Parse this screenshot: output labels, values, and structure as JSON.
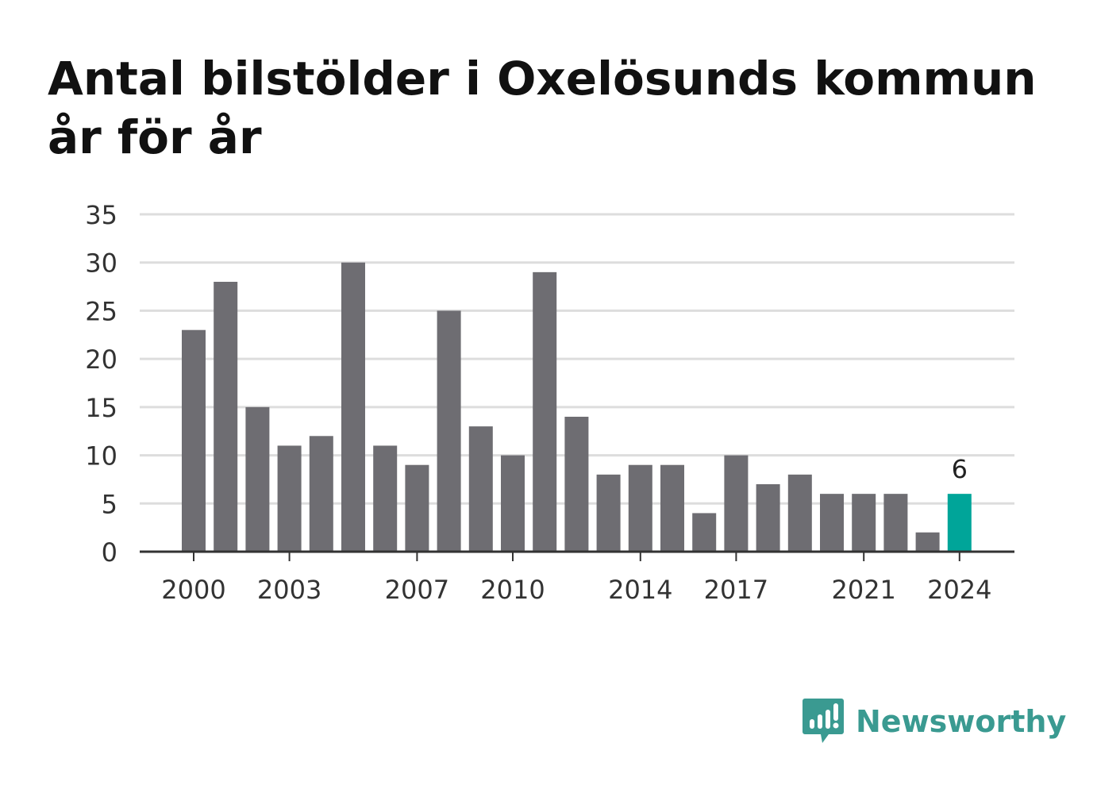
{
  "title": "Antal bilstölder i Oxelösunds kommun år för år",
  "brand": {
    "name": "Newsworthy",
    "icon": "newsworthy-logo-icon",
    "color": "#3a9a91"
  },
  "chart_data": {
    "type": "bar",
    "title": "Antal bilstölder i Oxelösunds kommun år för år",
    "xlabel": "",
    "ylabel": "",
    "categories": [
      "2000",
      "2001",
      "2002",
      "2003",
      "2004",
      "2005",
      "2006",
      "2007",
      "2008",
      "2009",
      "2010",
      "2011",
      "2012",
      "2013",
      "2014",
      "2015",
      "2016",
      "2017",
      "2018",
      "2019",
      "2020",
      "2021",
      "2022",
      "2023",
      "2024"
    ],
    "values": [
      23,
      28,
      15,
      11,
      12,
      30,
      11,
      9,
      25,
      13,
      10,
      29,
      14,
      8,
      9,
      9,
      4,
      10,
      7,
      8,
      6,
      6,
      6,
      2,
      6
    ],
    "x_tick_labels": [
      "2000",
      "2003",
      "2007",
      "2010",
      "2014",
      "2017",
      "2021",
      "2024"
    ],
    "y_ticks": [
      "0",
      "5",
      "10",
      "15",
      "20",
      "25",
      "30",
      "35"
    ],
    "ylim": [
      0,
      35
    ],
    "grid": true,
    "legend": "none",
    "highlight": {
      "category": "2024",
      "label": "6"
    },
    "colors": {
      "bar": "#6e6d72",
      "highlight": "#00a599",
      "grid": "#dddddd",
      "axis": "#333333"
    }
  }
}
